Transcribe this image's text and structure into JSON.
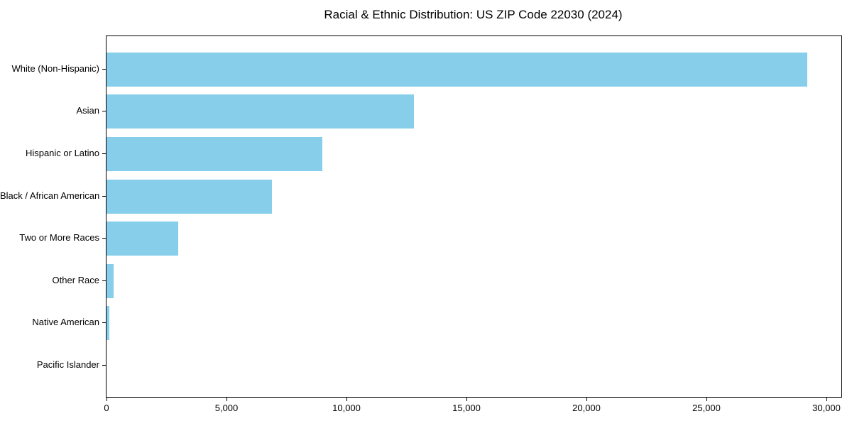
{
  "chart_data": {
    "type": "bar",
    "orientation": "horizontal",
    "title": "Racial & Ethnic Distribution: US ZIP Code 22030 (2024)",
    "categories": [
      "White (Non-Hispanic)",
      "Asian",
      "Hispanic or Latino",
      "Black / African American",
      "Two or More Races",
      "Other Race",
      "Native American",
      "Pacific Islander"
    ],
    "values": [
      29200,
      12800,
      9000,
      6900,
      3000,
      300,
      120,
      0
    ],
    "xlabel": "",
    "ylabel": "",
    "xlim": [
      0,
      30620
    ],
    "x_ticks": [
      0,
      5000,
      10000,
      15000,
      20000,
      25000,
      30000
    ],
    "x_tick_labels": [
      "0",
      "5,000",
      "10,000",
      "15,000",
      "20,000",
      "25,000",
      "30,000"
    ],
    "bar_color": "#87CEEB",
    "axis_color": "#000000",
    "text_color": "#000000",
    "background_color": "#ffffff",
    "grid": false,
    "legend_position": "none"
  }
}
